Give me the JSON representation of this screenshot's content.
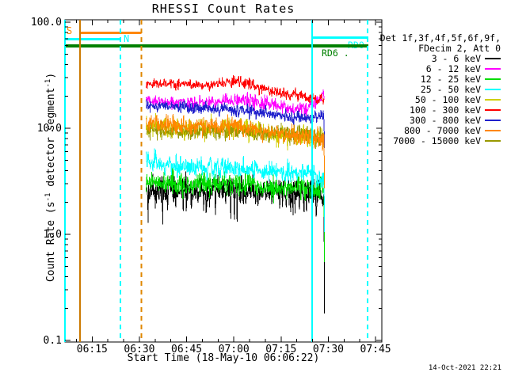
{
  "title": "RHESSI Count Rates",
  "timestamp": "14-Oct-2021 22:21",
  "axes": {
    "x": {
      "label": "Start Time (18-May-10 06:06:22)",
      "start_time": "06:06:22",
      "end_time": "07:46:28",
      "major_ticks": [
        "06:15",
        "06:30",
        "06:45",
        "07:00",
        "07:15",
        "07:30",
        "07:45"
      ],
      "minor_tick_step_minutes": 5
    },
    "y": {
      "label_parts": {
        "pre": "Count Rate (s",
        "sup1": "-1",
        "mid": " detector segment",
        "sup2": "-1",
        "post": ")"
      },
      "scale": "log",
      "range": [
        0.1,
        100
      ],
      "ticks": [
        {
          "label": "100.0",
          "value": 100
        },
        {
          "label": "10.0",
          "value": 10
        },
        {
          "label": "1.0",
          "value": 1
        },
        {
          "label": "0.1",
          "value": 0.1
        }
      ]
    }
  },
  "legend": {
    "header": [
      "Det 1f,3f,4f,5f,6f,9f,",
      "FDecim 2, Att 0"
    ],
    "items": [
      {
        "label": "3 - 6 keV",
        "color": "#000000"
      },
      {
        "label": "6 - 12 keV",
        "color": "#ff00ff"
      },
      {
        "label": "12 - 25 keV",
        "color": "#00dc00"
      },
      {
        "label": "25 - 50 keV",
        "color": "#00ffff"
      },
      {
        "label": "50 - 100 keV",
        "color": "#cfcf00"
      },
      {
        "label": "100 - 300 keV",
        "color": "#ff0000"
      },
      {
        "label": "300 - 800 keV",
        "color": "#2020cc"
      },
      {
        "label": "800 - 7000 keV",
        "color": "#ff8700"
      },
      {
        "label": "7000 - 15000 keV",
        "color": "#999900"
      }
    ]
  },
  "flags": [
    {
      "label": "S",
      "color": "#ff8700",
      "bar_start": "06:10:53",
      "bar_end": "06:30:40",
      "bar_thickness": 3
    },
    {
      "label": "N",
      "color": "#00ffff",
      "bar_start": "06:06:22",
      "bar_end": "06:24:00",
      "bar_thickness": 3
    },
    {
      "label": "RD0",
      "color": "#00ffff",
      "bar_start": "07:24:52",
      "bar_end": "07:42:43",
      "bar_thickness": 3
    },
    {
      "label": "RD6 .",
      "color": "#008000",
      "bar_start": "06:06:22",
      "bar_end": "07:42:43",
      "bar_thickness": 4
    }
  ],
  "markers": [
    {
      "time": "06:06:22",
      "style": "solid",
      "color": "#00ffff"
    },
    {
      "time": "06:11:09",
      "style": "solid",
      "color": "#cc7a00"
    },
    {
      "time": "06:24:00",
      "style": "dashed",
      "color": "#00ffff"
    },
    {
      "time": "06:30:40",
      "style": "dashed",
      "color": "#e08700"
    },
    {
      "time": "07:24:52",
      "style": "solid",
      "color": "#00ffff"
    },
    {
      "time": "07:42:28",
      "style": "dashed",
      "color": "#00ffff"
    }
  ],
  "chart_data": {
    "type": "line",
    "title": "RHESSI Count Rates",
    "xlabel": "Start Time (18-May-10 06:06:22)",
    "ylabel": "Count Rate (s^-1 detector segment^-1)",
    "yscale": "log",
    "ylim": [
      0.1,
      100
    ],
    "grid": false,
    "legend_position": "right",
    "data_start": "06:32:10",
    "data_end": "07:28:45",
    "series": [
      {
        "name": "3 - 6 keV",
        "color": "#000000",
        "sigma": 0.065,
        "spike_p": 0.04,
        "spike_f": 0.5,
        "end_drop": 0.18,
        "points": [
          [
            "06:32",
            2.6
          ],
          [
            "06:45",
            2.5
          ],
          [
            "07:00",
            2.6
          ],
          [
            "07:15",
            2.5
          ],
          [
            "07:28",
            2.4
          ]
        ]
      },
      {
        "name": "6 - 12 keV",
        "color": "#ff00ff",
        "sigma": 0.035,
        "points": [
          [
            "06:32",
            18.5
          ],
          [
            "06:40",
            17.5
          ],
          [
            "06:48",
            17
          ],
          [
            "06:56",
            18
          ],
          [
            "07:03",
            18.5
          ],
          [
            "07:10",
            17
          ],
          [
            "07:17",
            15.5
          ],
          [
            "07:24",
            15.5
          ],
          [
            "07:28",
            20
          ]
        ]
      },
      {
        "name": "12 - 25 keV",
        "color": "#00dc00",
        "sigma": 0.055,
        "spike_p": 0.012,
        "spike_f": 0.7,
        "end_drop": 0.55,
        "points": [
          [
            "06:32",
            3.1
          ],
          [
            "06:45",
            2.9
          ],
          [
            "07:00",
            3.0
          ],
          [
            "07:15",
            2.8
          ],
          [
            "07:28",
            2.7
          ]
        ]
      },
      {
        "name": "25 - 50 keV",
        "color": "#00ffff",
        "sigma": 0.05,
        "end_drop": 1.05,
        "points": [
          [
            "06:32",
            4.8
          ],
          [
            "06:45",
            4.4
          ],
          [
            "07:00",
            4.2
          ],
          [
            "07:15",
            3.9
          ],
          [
            "07:28",
            3.5
          ]
        ]
      },
      {
        "name": "50 - 100 keV",
        "color": "#cfcf00",
        "sigma": 0.05,
        "points": [
          [
            "06:32",
            10.5
          ],
          [
            "06:45",
            10
          ],
          [
            "07:00",
            10
          ],
          [
            "07:15",
            8.6
          ],
          [
            "07:28",
            8
          ]
        ]
      },
      {
        "name": "7000 - 15000 keV",
        "color": "#999900",
        "sigma": 0.04,
        "points": [
          [
            "06:32",
            9.5
          ],
          [
            "06:45",
            9.3
          ],
          [
            "07:00",
            9.3
          ],
          [
            "07:15",
            8.8
          ],
          [
            "07:28",
            8.5
          ]
        ]
      },
      {
        "name": "100 - 300 keV",
        "color": "#ff0000",
        "sigma": 0.027,
        "points": [
          [
            "06:32",
            27
          ],
          [
            "06:40",
            26
          ],
          [
            "06:48",
            25.5
          ],
          [
            "06:56",
            26.5
          ],
          [
            "07:02",
            27
          ],
          [
            "07:08",
            24
          ],
          [
            "07:15",
            21.5
          ],
          [
            "07:22",
            20
          ],
          [
            "07:28",
            18.5
          ]
        ]
      },
      {
        "name": "300 - 800 keV",
        "color": "#2020cc",
        "sigma": 0.03,
        "end_drop": 6.5,
        "points": [
          [
            "06:32",
            16.5
          ],
          [
            "06:40",
            16
          ],
          [
            "06:48",
            15.5
          ],
          [
            "06:56",
            15
          ],
          [
            "07:03",
            14.5
          ],
          [
            "07:10",
            14
          ],
          [
            "07:17",
            13
          ],
          [
            "07:24",
            12.5
          ],
          [
            "07:28",
            13
          ]
        ]
      },
      {
        "name": "800 - 7000 keV",
        "color": "#ff8700",
        "sigma": 0.045,
        "end_drop": 2.7,
        "points": [
          [
            "06:32",
            11
          ],
          [
            "06:45",
            10.5
          ],
          [
            "07:00",
            10.5
          ],
          [
            "07:15",
            9
          ],
          [
            "07:28",
            8
          ]
        ]
      }
    ]
  }
}
